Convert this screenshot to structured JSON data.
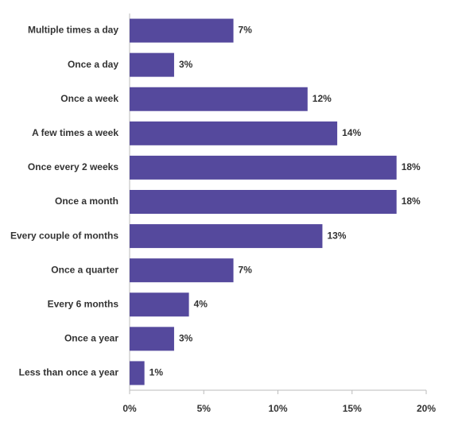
{
  "chart_data": {
    "type": "bar",
    "orientation": "horizontal",
    "categories": [
      "Multiple times a day",
      "Once a day",
      "Once a week",
      "A few times a week",
      "Once every 2 weeks",
      "Once a month",
      "Every couple of months",
      "Once a quarter",
      "Every 6 months",
      "Once a year",
      "Less than once a year"
    ],
    "values": [
      7,
      3,
      12,
      14,
      18,
      18,
      13,
      7,
      4,
      3,
      1
    ],
    "value_labels": [
      "7%",
      "3%",
      "12%",
      "14%",
      "18%",
      "18%",
      "13%",
      "7%",
      "4%",
      "3%",
      "1%"
    ],
    "color": "#55499d",
    "xlim": [
      0,
      20
    ],
    "xticks": [
      {
        "value": 0,
        "label": "0%"
      },
      {
        "value": 5,
        "label": "5%"
      },
      {
        "value": 10,
        "label": "10%"
      },
      {
        "value": 15,
        "label": "15%"
      },
      {
        "value": 20,
        "label": "20%"
      }
    ],
    "grid": false
  }
}
